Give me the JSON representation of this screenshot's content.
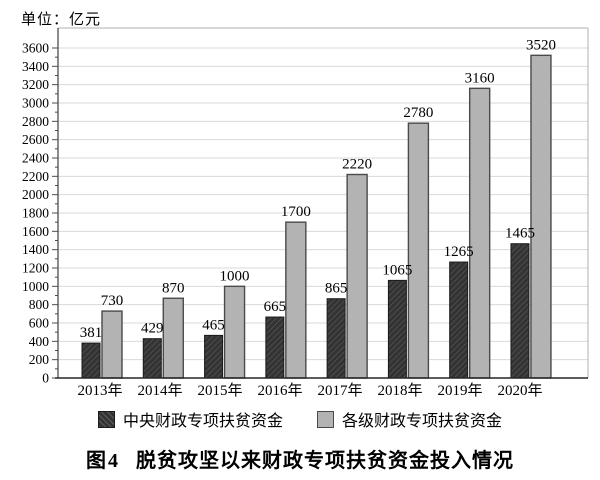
{
  "unit_label": "单位：亿元",
  "caption": {
    "figure_label": "图4",
    "title": "脱贫攻坚以来财政专项扶贫资金投入情况"
  },
  "legend": [
    {
      "label": "中央财政专项扶贫资金",
      "swatch": "dark-hatch"
    },
    {
      "label": "各级财政专项扶贫资金",
      "swatch": "light-gray"
    }
  ],
  "colors": {
    "dark_bar": "#333333",
    "dark_bar_hatch": "#5c5c5c",
    "dark_bar_border": "#1a1a1a",
    "light_bar": "#b3b3b3",
    "light_bar_border": "#4a4a4a",
    "grid": "#d9d9d9",
    "frame": "#b0b0b0",
    "axis": "#4d4d4d",
    "baseline": "#262626",
    "text": "#000000"
  },
  "chart_data": {
    "type": "bar",
    "categories": [
      "2013年",
      "2014年",
      "2015年",
      "2016年",
      "2017年",
      "2018年",
      "2019年",
      "2020年"
    ],
    "series": [
      {
        "name": "中央财政专项扶贫资金",
        "values": [
          381,
          429,
          465,
          665,
          865,
          1065,
          1265,
          1465
        ]
      },
      {
        "name": "各级财政专项扶贫资金",
        "values": [
          730,
          870,
          1000,
          1700,
          2220,
          2780,
          3160,
          3520
        ]
      }
    ],
    "title": "图4 脱贫攻坚以来财政专项扶贫资金投入情况",
    "xlabel": "",
    "ylabel": "单位：亿元",
    "ylim": [
      0,
      3600
    ],
    "ytick_step": 200,
    "ytick_minor_step": 100,
    "grid": "horizontal",
    "legend_position": "bottom",
    "data_labels": true
  }
}
